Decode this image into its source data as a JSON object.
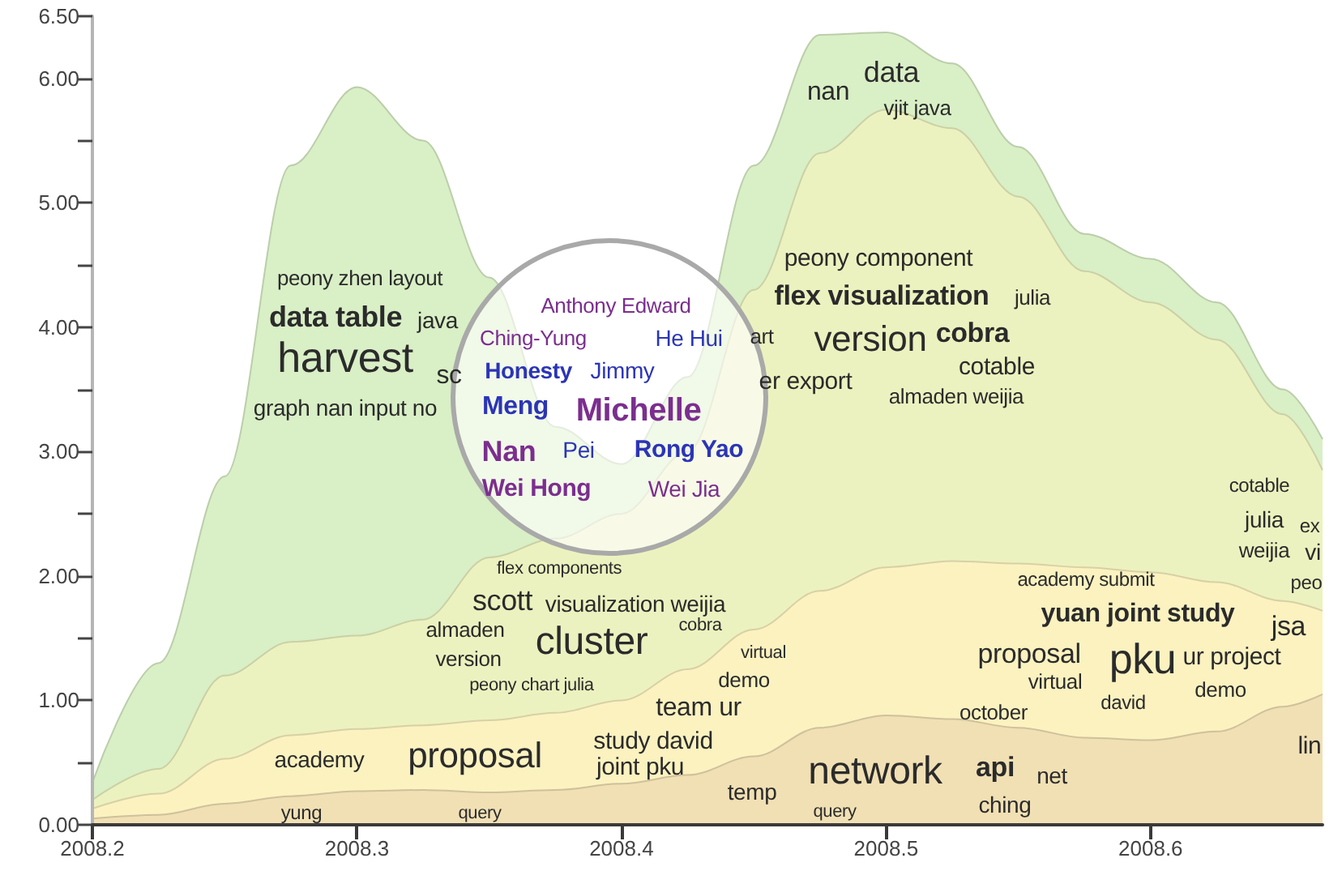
{
  "chart_data": {
    "type": "area",
    "stacked": true,
    "x": [
      2008.2,
      2008.225,
      2008.25,
      2008.275,
      2008.3,
      2008.325,
      2008.35,
      2008.375,
      2008.4,
      2008.425,
      2008.45,
      2008.475,
      2008.5,
      2008.525,
      2008.55,
      2008.575,
      2008.6,
      2008.625,
      2008.65,
      2008.665
    ],
    "series": [
      {
        "color": "#f1e0b4",
        "values": [
          0.05,
          0.08,
          0.17,
          0.23,
          0.27,
          0.28,
          0.26,
          0.28,
          0.33,
          0.4,
          0.55,
          0.78,
          0.88,
          0.85,
          0.78,
          0.7,
          0.68,
          0.75,
          0.95,
          1.05
        ]
      },
      {
        "color": "#fbf2c0",
        "values": [
          0.08,
          0.17,
          0.36,
          0.49,
          0.5,
          0.52,
          0.58,
          0.62,
          0.67,
          0.85,
          1.02,
          1.1,
          1.19,
          1.27,
          1.32,
          1.37,
          1.35,
          1.2,
          0.85,
          0.67
        ]
      },
      {
        "color": "#ecf2bf",
        "values": [
          0.07,
          0.2,
          0.67,
          0.75,
          0.75,
          0.85,
          1.31,
          1.4,
          1.5,
          1.75,
          2.73,
          3.52,
          3.68,
          3.48,
          2.95,
          2.38,
          2.17,
          1.95,
          1.5,
          1.13
        ]
      },
      {
        "color": "#d9efc6",
        "values": [
          0.14,
          0.85,
          1.6,
          3.83,
          4.41,
          3.85,
          2.25,
          0.9,
          0.4,
          0.6,
          1.0,
          0.95,
          0.62,
          0.52,
          0.4,
          0.3,
          0.35,
          0.3,
          0.2,
          0.25
        ]
      }
    ],
    "xlim": [
      2008.2,
      2008.665
    ],
    "xticks": [
      2008.2,
      2008.3,
      2008.4,
      2008.5,
      2008.6
    ],
    "ylim": [
      0,
      6.5
    ],
    "yticks": [
      {
        "value": 0,
        "label": "0.00"
      },
      {
        "value": 0.5,
        "label": null
      },
      {
        "value": 1,
        "label": "1.00"
      },
      {
        "value": 1.5,
        "label": null
      },
      {
        "value": 2,
        "label": "2.00"
      },
      {
        "value": 2.5,
        "label": null
      },
      {
        "value": 3,
        "label": "3.00"
      },
      {
        "value": 3.5,
        "label": null
      },
      {
        "value": 4,
        "label": "4.00"
      },
      {
        "value": 4.5,
        "label": null
      },
      {
        "value": 5,
        "label": "5.00"
      },
      {
        "value": 5.5,
        "label": null
      },
      {
        "value": 6,
        "label": "6.00"
      },
      {
        "value": 6.5,
        "label": "6.50"
      }
    ],
    "annotations": [
      "peony zhen layout",
      "data table",
      "java",
      "harvest",
      "sc",
      "graph nan input no",
      "Anthony Edward",
      "Ching-Yung",
      "He Hui",
      "Honesty",
      "Jimmy",
      "Meng",
      "Michelle",
      "Nan",
      "Pei",
      "Rong Yao",
      "Wei Hong",
      "Wei Jia",
      "nan",
      "data",
      "vjit java",
      "peony component",
      "flex visualization",
      "julia",
      "art",
      "version",
      "cobra",
      "cotable",
      "er export",
      "almaden weijia",
      "flex components",
      "scott",
      "visualization weijia",
      "almaden",
      "cluster",
      "cobra",
      "version",
      "peony chart julia",
      "virtual",
      "demo",
      "team ur",
      "academy",
      "proposal",
      "study david",
      "joint pku",
      "yung",
      "query",
      "temp",
      "query",
      "network",
      "api",
      "net",
      "ching",
      "lin",
      "academy submit",
      "yuan joint study",
      "jsa",
      "proposal",
      "pku",
      "ur project",
      "virtual",
      "david",
      "demo",
      "october",
      "cotable",
      "julia",
      "ex",
      "weijia",
      "vi",
      "peo"
    ]
  }
}
